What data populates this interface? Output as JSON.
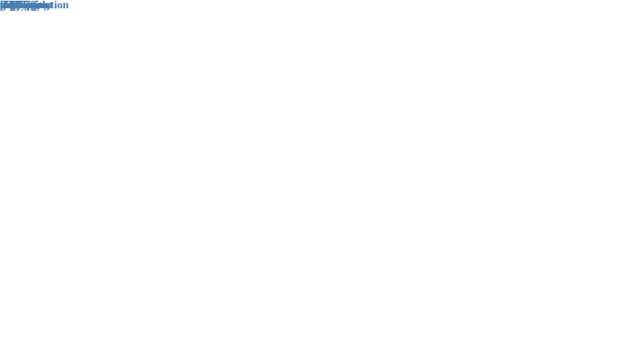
{
  "cloud": {
    "color": "#4a7fb0",
    "words": [
      {
        "name": "discrimination",
        "text": "discrimination"
      },
      {
        "name": "deliberate",
        "text": "deliberate"
      },
      {
        "name": "correction",
        "text": "correction"
      },
      {
        "name": "effect",
        "text": "effect"
      },
      {
        "name": "participant",
        "text": "participant"
      },
      {
        "name": "error",
        "text": "error"
      },
      {
        "name": "experiment",
        "text": "experiment"
      },
      {
        "name": "concept",
        "text": "concept"
      },
      {
        "name": "definition",
        "text": "definition"
      },
      {
        "name": "derring",
        "text": "derring"
      },
      {
        "name": "improved",
        "text": "improved"
      },
      {
        "name": "headline",
        "text": "headline"
      },
      {
        "name": "generation",
        "text": "generation"
      },
      {
        "name": "learning",
        "text": "learning"
      },
      {
        "name": "examining",
        "text": "examining"
      },
      {
        "name": "evidence",
        "text": "evidence"
      },
      {
        "name": "replicate",
        "text": "replicate"
      },
      {
        "name": "caution",
        "text": "caution"
      },
      {
        "name": "erring",
        "text": "erring"
      },
      {
        "name": "indian",
        "text": "indian"
      },
      {
        "name": "game",
        "text": "game"
      },
      {
        "name": "correct",
        "text": "correct"
      },
      {
        "name": "new",
        "text": "new"
      },
      {
        "name": "fact",
        "text": "fact"
      },
      {
        "name": "copy",
        "text": "copy"
      },
      {
        "name": "failure",
        "text": "failure"
      },
      {
        "name": "answer",
        "text": "answer"
      },
      {
        "name": "true",
        "text": "true"
      },
      {
        "name": "fake",
        "text": "fake"
      },
      {
        "name": "single",
        "text": "single"
      },
      {
        "name": "trial",
        "text": "trial"
      },
      {
        "name": "side",
        "text": "side"
      },
      {
        "name": "study",
        "text": "study"
      },
      {
        "name": "memory",
        "text": "memory"
      }
    ]
  }
}
